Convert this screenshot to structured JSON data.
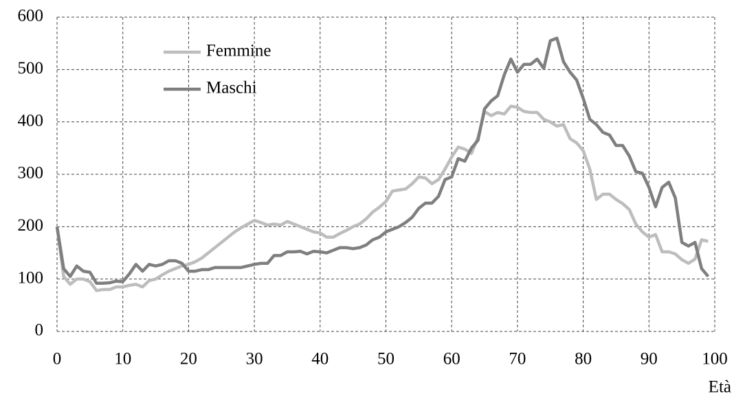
{
  "chart_data": {
    "type": "line",
    "x_label": "Età",
    "x": [
      0,
      1,
      2,
      3,
      4,
      5,
      6,
      7,
      8,
      9,
      10,
      11,
      12,
      13,
      14,
      15,
      16,
      17,
      18,
      19,
      20,
      21,
      22,
      23,
      24,
      25,
      26,
      27,
      28,
      29,
      30,
      31,
      32,
      33,
      34,
      35,
      36,
      37,
      38,
      39,
      40,
      41,
      42,
      43,
      44,
      45,
      46,
      47,
      48,
      49,
      50,
      51,
      52,
      53,
      54,
      55,
      56,
      57,
      58,
      59,
      60,
      61,
      62,
      63,
      64,
      65,
      66,
      67,
      68,
      69,
      70,
      71,
      72,
      73,
      74,
      75,
      76,
      77,
      78,
      79,
      80,
      81,
      82,
      83,
      84,
      85,
      86,
      87,
      88,
      89,
      90,
      91,
      92,
      93,
      94,
      95,
      96,
      97,
      98,
      99
    ],
    "series": [
      {
        "name": "Femmine",
        "color": "#bdbdbd",
        "values": [
          200,
          105,
          90,
          100,
          100,
          95,
          78,
          80,
          80,
          85,
          85,
          88,
          90,
          85,
          97,
          100,
          108,
          115,
          120,
          125,
          128,
          133,
          140,
          150,
          160,
          170,
          180,
          190,
          198,
          205,
          212,
          208,
          203,
          205,
          203,
          210,
          205,
          200,
          195,
          190,
          188,
          180,
          180,
          187,
          193,
          200,
          205,
          215,
          228,
          237,
          248,
          268,
          270,
          272,
          282,
          295,
          293,
          282,
          290,
          310,
          333,
          352,
          348,
          340,
          370,
          420,
          412,
          418,
          415,
          430,
          428,
          420,
          418,
          418,
          405,
          400,
          392,
          395,
          368,
          360,
          345,
          310,
          252,
          262,
          262,
          252,
          244,
          233,
          205,
          190,
          180,
          185,
          152,
          152,
          148,
          137,
          130,
          138,
          175,
          172
        ]
      },
      {
        "name": "Maschi",
        "color": "#7f7f7f",
        "values": [
          200,
          120,
          105,
          125,
          115,
          113,
          92,
          92,
          93,
          96,
          95,
          110,
          128,
          115,
          128,
          125,
          128,
          135,
          135,
          130,
          115,
          115,
          118,
          118,
          122,
          122,
          122,
          122,
          122,
          125,
          128,
          130,
          130,
          145,
          145,
          152,
          152,
          153,
          148,
          153,
          152,
          150,
          155,
          160,
          160,
          158,
          160,
          165,
          175,
          180,
          190,
          195,
          200,
          208,
          218,
          235,
          245,
          245,
          258,
          290,
          295,
          330,
          325,
          350,
          365,
          425,
          440,
          450,
          490,
          520,
          495,
          510,
          510,
          520,
          502,
          555,
          560,
          515,
          495,
          480,
          445,
          405,
          395,
          380,
          375,
          355,
          355,
          335,
          305,
          302,
          275,
          238,
          275,
          285,
          255,
          170,
          163,
          170,
          120,
          105
        ]
      }
    ],
    "xlim": [
      0,
      100
    ],
    "xticks": [
      0,
      10,
      20,
      30,
      40,
      50,
      60,
      70,
      80,
      90,
      100
    ],
    "ylim": [
      0,
      600
    ],
    "yticks": [
      0,
      100,
      200,
      300,
      400,
      500,
      600
    ],
    "grid": true
  }
}
